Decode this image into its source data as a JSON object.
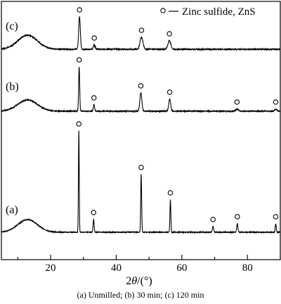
{
  "chart_data": {
    "type": "line",
    "xlabel_prefix": "2",
    "xlabel_theta": "θ",
    "xlabel_suffix": "/(°)",
    "xlim": [
      5,
      90
    ],
    "xticks": [
      20,
      40,
      60,
      80
    ],
    "grid": false,
    "legend": {
      "placement": "top-right",
      "marker": "circle",
      "label": "Zinc sulfide, ZnS"
    },
    "series": [
      {
        "name": "(a)",
        "peaks": [
          {
            "x": 28.6,
            "marked": true
          },
          {
            "x": 33.1,
            "marked": true
          },
          {
            "x": 47.6,
            "marked": true
          },
          {
            "x": 56.5,
            "marked": true
          },
          {
            "x": 69.5,
            "marked": true
          },
          {
            "x": 76.9,
            "marked": true
          },
          {
            "x": 88.6,
            "marked": true
          }
        ]
      },
      {
        "name": "(b)",
        "peaks": [
          {
            "x": 28.7,
            "marked": true
          },
          {
            "x": 33.2,
            "marked": true
          },
          {
            "x": 47.5,
            "marked": true
          },
          {
            "x": 56.3,
            "marked": true
          },
          {
            "x": 76.8,
            "marked": true
          },
          {
            "x": 88.6,
            "marked": true
          }
        ]
      },
      {
        "name": "(c)",
        "peaks": [
          {
            "x": 28.8,
            "marked": true
          },
          {
            "x": 33.3,
            "marked": true
          },
          {
            "x": 47.7,
            "marked": true
          },
          {
            "x": 56.2,
            "marked": true
          }
        ]
      }
    ]
  },
  "caption": "(a) Unmilled; (b) 30 min; (c) 120 min"
}
